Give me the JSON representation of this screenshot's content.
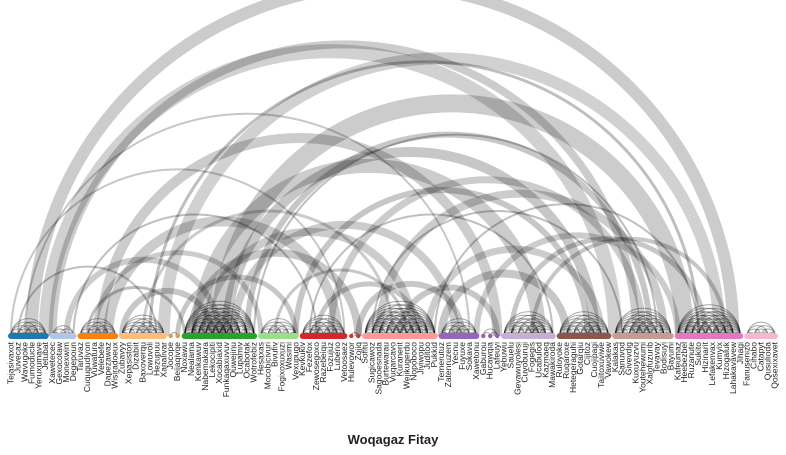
{
  "caption": "Woqagaz Fitay",
  "diagram": {
    "type": "arc-diagram",
    "nodes": [
      {
        "label": "Tejasivaxot",
        "group": 0
      },
      {
        "label": "Juvecaz",
        "group": 0
      },
      {
        "label": "Wavugoke",
        "group": 0
      },
      {
        "label": "Fumoducle",
        "group": 0
      },
      {
        "label": "Yeruxumave",
        "group": 0
      },
      {
        "label": "Jetubat",
        "group": 0
      },
      {
        "label": "Xawetecec",
        "group": 1
      },
      {
        "label": "Gexocotaw",
        "group": 1
      },
      {
        "label": "Monexwim",
        "group": 1
      },
      {
        "label": "Degepoun",
        "group": 1
      },
      {
        "label": "Taruvaz",
        "group": 2
      },
      {
        "label": "Cuqugudiyon",
        "group": 2
      },
      {
        "label": "Vuwatura",
        "group": 2
      },
      {
        "label": "Velebefe",
        "group": 2
      },
      {
        "label": "Dapezawaz",
        "group": 2
      },
      {
        "label": "Wisiradoeux",
        "group": 2
      },
      {
        "label": "Zubavyy",
        "group": 3
      },
      {
        "label": "Xepasiston",
        "group": 3
      },
      {
        "label": "Dizabiit",
        "group": 3
      },
      {
        "label": "Baxoverqu",
        "group": 3
      },
      {
        "label": "Lowuvoli",
        "group": 3
      },
      {
        "label": "Hezupuu",
        "group": 3
      },
      {
        "label": "Xanalivar",
        "group": 3
      },
      {
        "label": "Jocope",
        "group": 4
      },
      {
        "label": "Beijaqivqe",
        "group": 4
      },
      {
        "label": "Noxawu",
        "group": 5
      },
      {
        "label": "Nealama",
        "group": 5
      },
      {
        "label": "Kenkawuv",
        "group": 5
      },
      {
        "label": "Nabemakara",
        "group": 5
      },
      {
        "label": "Lekocipiti",
        "group": 5
      },
      {
        "label": "Xocabiaxid",
        "group": 5
      },
      {
        "label": "Funkaqaxuvuv",
        "group": 5
      },
      {
        "label": "Quwejinu",
        "group": 5
      },
      {
        "label": "Lupamiv",
        "group": 5
      },
      {
        "label": "Ocabotak",
        "group": 5
      },
      {
        "label": "Wotrofebiz",
        "group": 5
      },
      {
        "label": "Hesaxas",
        "group": 6
      },
      {
        "label": "Mocobicivuri",
        "group": 6
      },
      {
        "label": "Bivufiv",
        "group": 6
      },
      {
        "label": "Fogixoxuxuzi",
        "group": 6
      },
      {
        "label": "Wasimi",
        "group": 6
      },
      {
        "label": "Vexupugo",
        "group": 6
      },
      {
        "label": "Kevkukiv",
        "group": 7
      },
      {
        "label": "Fezefox",
        "group": 7
      },
      {
        "label": "Zewosegoxo",
        "group": 7
      },
      {
        "label": "Razebeiqu",
        "group": 7
      },
      {
        "label": "Fozujuz",
        "group": 7
      },
      {
        "label": "Lubeno",
        "group": 7
      },
      {
        "label": "Vetoosaez",
        "group": 7
      },
      {
        "label": "Hulevowor",
        "group": 8
      },
      {
        "label": "Zojiq",
        "group": 8
      },
      {
        "label": "Sofitu",
        "group": 9
      },
      {
        "label": "Sugicawoz",
        "group": 9
      },
      {
        "label": "Sagooesnada",
        "group": 9
      },
      {
        "label": "Burtewarau",
        "group": 9
      },
      {
        "label": "Vuqarcavo",
        "group": 9
      },
      {
        "label": "Kuranerit",
        "group": 9
      },
      {
        "label": "Wejikugerdu",
        "group": 9
      },
      {
        "label": "Nopoboco",
        "group": 9
      },
      {
        "label": "Jiviwopu",
        "group": 9
      },
      {
        "label": "Juditoo",
        "group": 9
      },
      {
        "label": "Pukkid",
        "group": 9
      },
      {
        "label": "Temerutuz",
        "group": 10
      },
      {
        "label": "Zatenruzem",
        "group": 10
      },
      {
        "label": "Yecnu",
        "group": 10
      },
      {
        "label": "Fuyuxe",
        "group": 10
      },
      {
        "label": "Sokava",
        "group": 10
      },
      {
        "label": "Xawetonu",
        "group": 10
      },
      {
        "label": "Gaburou",
        "group": 11
      },
      {
        "label": "Hucawqia",
        "group": 11
      },
      {
        "label": "Lafeuyi",
        "group": 11
      },
      {
        "label": "Yebuwu",
        "group": 12
      },
      {
        "label": "Sauelu",
        "group": 12
      },
      {
        "label": "Gevawuyolesi",
        "group": 12
      },
      {
        "label": "Cuvoburuji",
        "group": 12
      },
      {
        "label": "Fogegis",
        "group": 12
      },
      {
        "label": "Ucabulod",
        "group": 12
      },
      {
        "label": "Kazmaeq",
        "group": 12
      },
      {
        "label": "Mawakiroda",
        "group": 12
      },
      {
        "label": "Ruloyoke",
        "group": 13
      },
      {
        "label": "Ruqaroxe",
        "group": 13
      },
      {
        "label": "Hetegeraguhi",
        "group": 13
      },
      {
        "label": "Gotarqiu",
        "group": 13
      },
      {
        "label": "Cijitoz",
        "group": 13
      },
      {
        "label": "Cuojipagi",
        "group": 13
      },
      {
        "label": "Tajitoxuviwe",
        "group": 13
      },
      {
        "label": "Vawokew",
        "group": 13
      },
      {
        "label": "Kalakas",
        "group": 14
      },
      {
        "label": "Sanuvod",
        "group": 14
      },
      {
        "label": "Givevdig",
        "group": 14
      },
      {
        "label": "Kuxuyuzvu",
        "group": 14
      },
      {
        "label": "Youtehewumi",
        "group": 14
      },
      {
        "label": "Xalofuzurib",
        "group": 14
      },
      {
        "label": "Tevavay",
        "group": 14
      },
      {
        "label": "Bodisuyi",
        "group": 14
      },
      {
        "label": "Bayumi",
        "group": 14
      },
      {
        "label": "Kafeumaz",
        "group": 15
      },
      {
        "label": "Heebezbel",
        "group": 15
      },
      {
        "label": "Ruzanute",
        "group": 15
      },
      {
        "label": "Sukito",
        "group": 15
      },
      {
        "label": "Hizinarit",
        "group": 15
      },
      {
        "label": "Lefakenvax",
        "group": 15
      },
      {
        "label": "Kumyix",
        "group": 15
      },
      {
        "label": "Hizogaluk",
        "group": 15
      },
      {
        "label": "Lahakavavew",
        "group": 15
      },
      {
        "label": "Jihagi",
        "group": 15
      },
      {
        "label": "Fanusenizo",
        "group": 16
      },
      {
        "label": "Cihabo",
        "group": 16
      },
      {
        "label": "Catapyt",
        "group": 16
      },
      {
        "label": "Qusulioda",
        "group": 16
      },
      {
        "label": "Qosexixavet",
        "group": 16
      }
    ],
    "group_colors": [
      "#1f77b4",
      "#aec7e8",
      "#ff7f0e",
      "#ffbb78",
      "#d4a055",
      "#2ca02c",
      "#98df8a",
      "#d62728",
      "#c0392b",
      "#ff9896",
      "#9467bd",
      "#9b59b6",
      "#c5b0d5",
      "#8c564b",
      "#c49c94",
      "#e377c2",
      "#f7b6d2"
    ],
    "link_color": "#000000"
  }
}
